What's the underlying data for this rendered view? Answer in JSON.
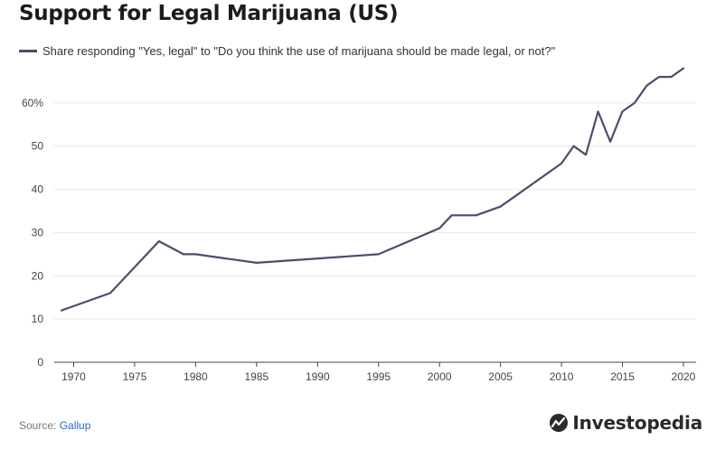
{
  "title": "Support for Legal Marijuana (US)",
  "legend_label": "Share responding \"Yes, legal\" to \"Do you think the use of marijuana should be made legal, or not?\"",
  "source_prefix": "Source: ",
  "source_name": "Gallup",
  "logo_text": "Investopedia",
  "colors": {
    "line": "#4a4e6a",
    "grid": "#e6e6e6",
    "axis": "#444444",
    "source_link": "#2a6ebb"
  },
  "chart_data": {
    "type": "line",
    "title": "Support for Legal Marijuana (US)",
    "xlabel": "",
    "ylabel": "",
    "xlim": [
      1969,
      2020
    ],
    "ylim": [
      0,
      70
    ],
    "grid": true,
    "legend_placement": "top-left",
    "x_ticks": [
      1970,
      1975,
      1980,
      1985,
      1990,
      1995,
      2000,
      2005,
      2010,
      2015,
      2020
    ],
    "y_ticks": [
      0,
      10,
      20,
      30,
      40,
      50,
      60
    ],
    "y_tick_labels": [
      "0",
      "10",
      "20",
      "30",
      "40",
      "50",
      "60%"
    ],
    "series": [
      {
        "name": "Share responding \"Yes, legal\" to \"Do you think the use of marijuana should be made legal, or not?\"",
        "x": [
          1969,
          1973,
          1977,
          1979,
          1980,
          1985,
          1995,
          2000,
          2001,
          2003,
          2005,
          2010,
          2011,
          2012,
          2013,
          2014,
          2015,
          2016,
          2017,
          2018,
          2019,
          2020
        ],
        "y": [
          12,
          16,
          28,
          25,
          25,
          23,
          25,
          31,
          34,
          34,
          36,
          46,
          50,
          48,
          58,
          51,
          58,
          60,
          64,
          66,
          66,
          68
        ]
      }
    ]
  }
}
